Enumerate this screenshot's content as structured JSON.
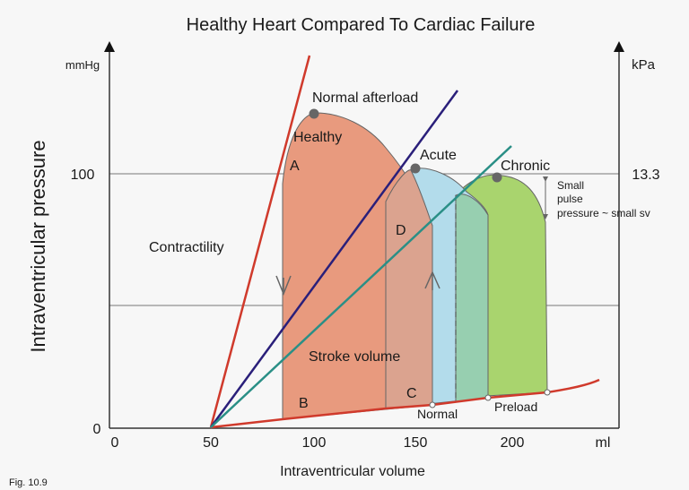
{
  "title": "Healthy Heart Compared To Cardiac Failure",
  "figure_label": "Fig. 10.9",
  "axes": {
    "x_label": "Intraventricular volume",
    "x_unit": "ml",
    "y_label": "Intraventricular pressure",
    "y_unit_left": "mmHg",
    "y_unit_right": "kPa",
    "x_ticks": [
      "0",
      "50",
      "100",
      "150",
      "200"
    ],
    "y_ticks_left": [
      "0",
      "100"
    ],
    "y_tick_right": "13.3"
  },
  "labels": {
    "normal_afterload": "Normal afterload",
    "contractility": "Contractility",
    "healthy": "Healthy",
    "acute": "Acute",
    "chronic": "Chronic",
    "point_a": "A",
    "point_b": "B",
    "point_c": "C",
    "point_d": "D",
    "stroke_volume": "Stroke volume",
    "normal": "Normal",
    "preload": "Preload",
    "small_pulse_1": "Small",
    "small_pulse_2": "pulse",
    "small_pulse_3": "pressure ~ small sv"
  },
  "colors": {
    "healthy_fill": "#e89a7e",
    "acute_fill": "#b3dceb",
    "chronic_fill": "#a9d46e",
    "overlap_fill": "#97cfb0",
    "contractility_line": "#d03a2c",
    "afterload_line": "#2a1f7a",
    "teal_line": "#2a8f86",
    "grid": "#777777",
    "marker": "#666666"
  }
}
